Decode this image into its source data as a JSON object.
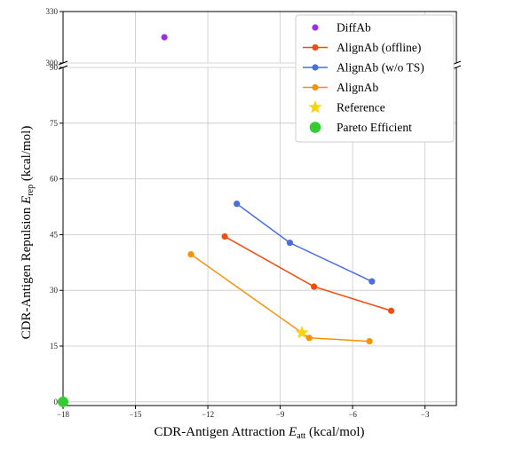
{
  "chart_data": {
    "type": "scatter",
    "xlabel": {
      "main": "CDR-Antigen Attraction ",
      "sym": "E",
      "sub": "att",
      "tail": " (kcal/mol)"
    },
    "ylabel": {
      "main": "CDR-Antigen Repulsion ",
      "sym": "E",
      "sub": "rep",
      "tail": " (kcal/mol)"
    },
    "xlim": [
      -18,
      -1.7
    ],
    "ylim_lower": [
      -1,
      90
    ],
    "ylim_upper": [
      300,
      330
    ],
    "broken_y_axis": true,
    "grid": true,
    "legend_position": "top-right",
    "xticks": [
      {
        "v": -18,
        "label": "−18"
      },
      {
        "v": -15,
        "label": "−15"
      },
      {
        "v": -12,
        "label": "−12"
      },
      {
        "v": -9,
        "label": "−9"
      },
      {
        "v": -6,
        "label": "−6"
      },
      {
        "v": -3,
        "label": "−3"
      }
    ],
    "yticks_lower": [
      {
        "v": 0,
        "label": "0"
      },
      {
        "v": 15,
        "label": "15"
      },
      {
        "v": 30,
        "label": "30"
      },
      {
        "v": 45,
        "label": "45"
      },
      {
        "v": 60,
        "label": "60"
      },
      {
        "v": 75,
        "label": "75"
      },
      {
        "v": 90,
        "label": "90"
      }
    ],
    "yticks_upper": [
      {
        "v": 300,
        "label": "300"
      },
      {
        "v": 330,
        "label": "330"
      }
    ],
    "series": [
      {
        "name": "DiffAb",
        "marker": "circle",
        "line": false,
        "color": "#9b30e0",
        "points": [
          [
            -13.8,
            315
          ]
        ]
      },
      {
        "name": "AlignAb (offline)",
        "marker": "circle",
        "line": true,
        "color": "#f14d0f",
        "points": [
          [
            -11.3,
            44.5
          ],
          [
            -7.6,
            31.0
          ],
          [
            -4.4,
            24.5
          ]
        ]
      },
      {
        "name": "AlignAb (w/o TS)",
        "marker": "circle",
        "line": true,
        "color": "#4a6fdc",
        "points": [
          [
            -10.8,
            53.3
          ],
          [
            -8.6,
            42.8
          ],
          [
            -5.2,
            32.4
          ]
        ]
      },
      {
        "name": "AlignAb",
        "marker": "circle",
        "line": true,
        "color": "#f8910a",
        "points": [
          [
            -12.7,
            39.7
          ],
          [
            -7.8,
            17.2
          ],
          [
            -5.3,
            16.3
          ]
        ]
      },
      {
        "name": "Reference",
        "marker": "star",
        "line": false,
        "color": "#fad20e",
        "points": [
          [
            -8.1,
            18.6
          ]
        ]
      },
      {
        "name": "Pareto Efficient",
        "marker": "bigcircle",
        "line": false,
        "color": "#33cc33",
        "points": [
          [
            -18,
            0
          ]
        ]
      }
    ]
  }
}
